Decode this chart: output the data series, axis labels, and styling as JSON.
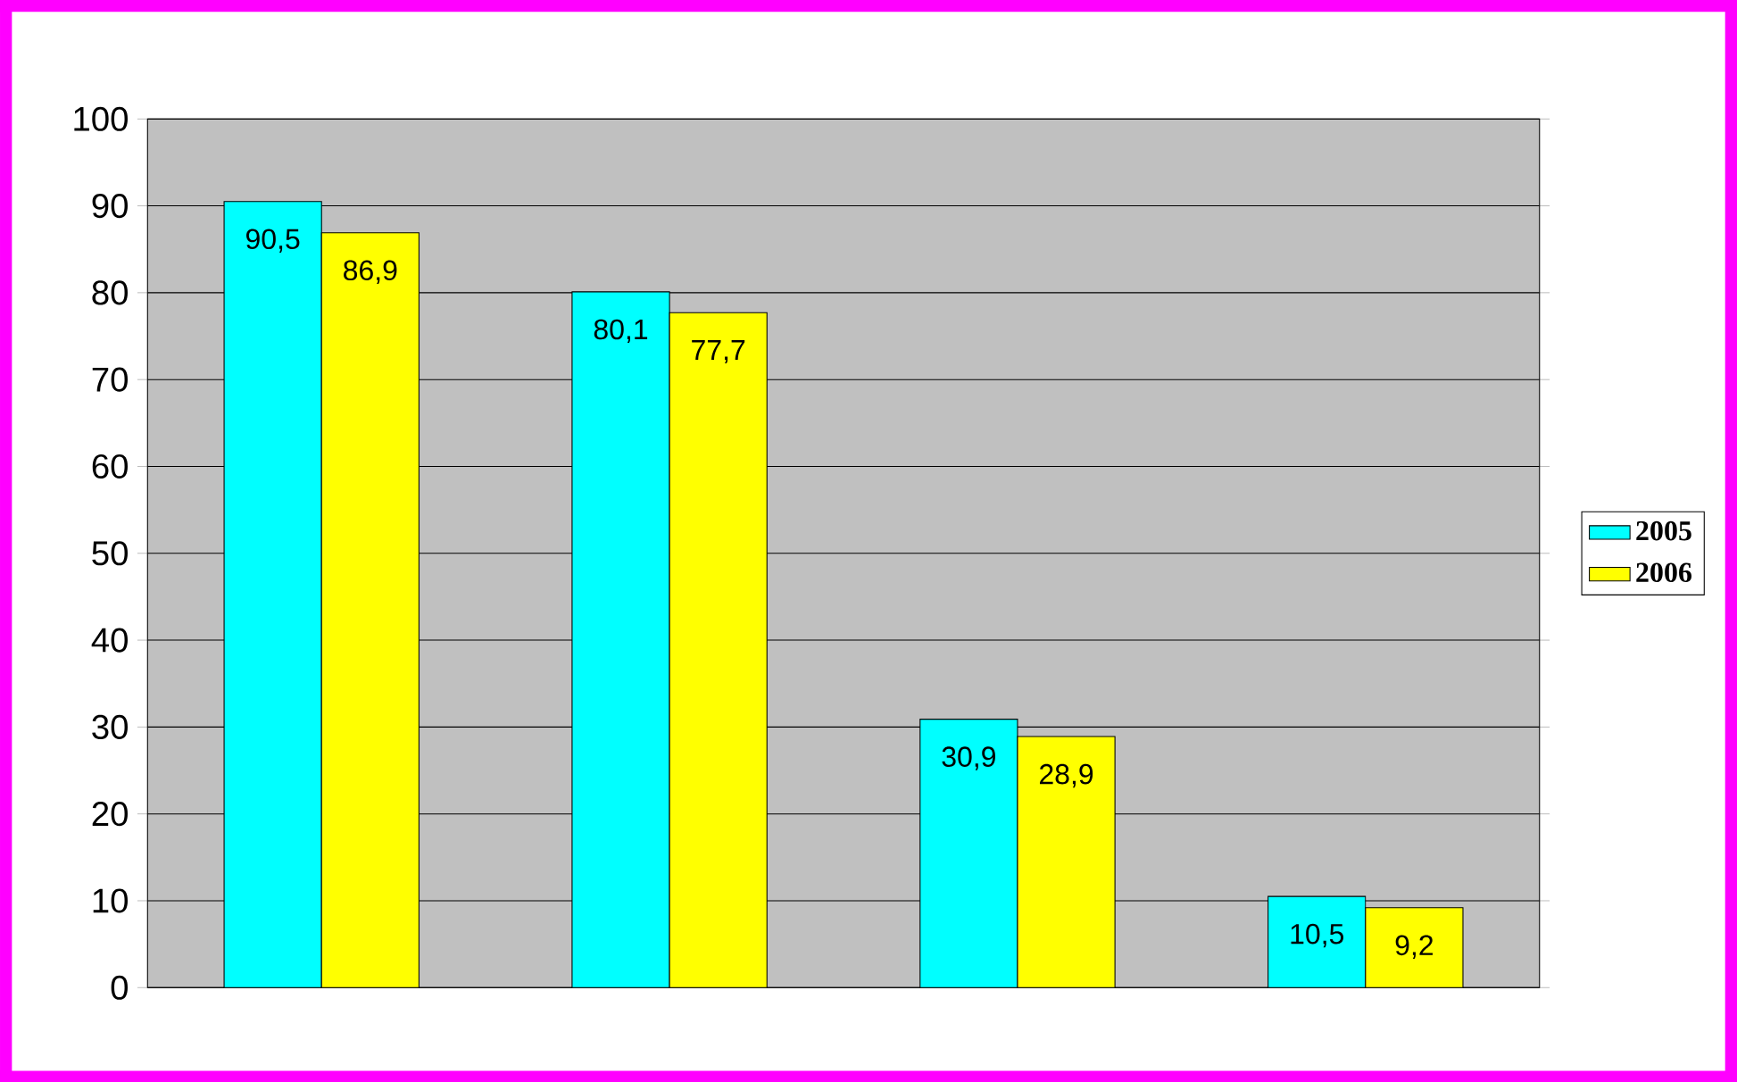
{
  "chart_data": {
    "type": "bar",
    "categories": [
      null,
      null,
      null,
      null
    ],
    "series": [
      {
        "name": "2005",
        "color": "#00ffff",
        "values": [
          90.5,
          80.1,
          30.9,
          10.5
        ],
        "value_labels": [
          "90,5",
          "80,1",
          "30,9",
          "10,5"
        ]
      },
      {
        "name": "2006",
        "color": "#ffff00",
        "values": [
          86.9,
          77.7,
          28.9,
          9.2
        ],
        "value_labels": [
          "86,9",
          "77,7",
          "28,9",
          "9,2"
        ]
      }
    ],
    "ylim": [
      0,
      100
    ],
    "yticks": [
      0,
      10,
      20,
      30,
      40,
      50,
      60,
      70,
      80,
      90,
      100
    ],
    "grid": "y",
    "legend": "right"
  }
}
